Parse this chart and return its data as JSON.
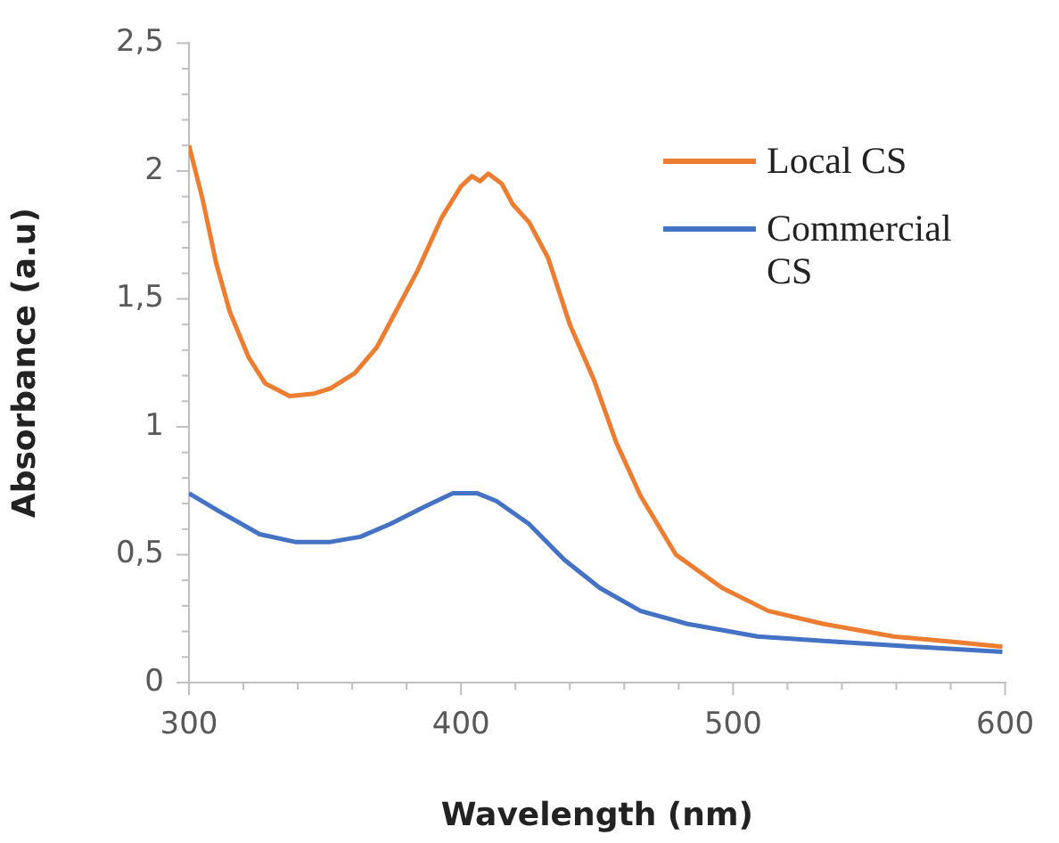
{
  "chart_data": {
    "type": "line",
    "xlabel": "Wavelength (nm)",
    "ylabel": "Absorbance (a.u)",
    "legend": "right",
    "marker": "none",
    "xlim": [
      300,
      600
    ],
    "ylim": [
      0,
      2.5
    ],
    "xticks": [
      300,
      {
        "value": 320,
        "label": null
      },
      {
        "value": 340,
        "label": null
      },
      {
        "value": 360,
        "label": null
      },
      {
        "value": 380,
        "label": null
      },
      400,
      {
        "value": 420,
        "label": null
      },
      {
        "value": 440,
        "label": null
      },
      {
        "value": 460,
        "label": null
      },
      {
        "value": 480,
        "label": null
      },
      500,
      {
        "value": 520,
        "label": null
      },
      {
        "value": 540,
        "label": null
      },
      {
        "value": 560,
        "label": null
      },
      {
        "value": 580,
        "label": null
      },
      600
    ],
    "yticks": [
      0,
      {
        "value": 0.1,
        "label": null
      },
      {
        "value": 0.2,
        "label": null
      },
      {
        "value": 0.3,
        "label": null
      },
      {
        "value": 0.4,
        "label": null
      },
      {
        "value": 0.5,
        "label": "0,5"
      },
      {
        "value": 0.6,
        "label": null
      },
      {
        "value": 0.7,
        "label": null
      },
      {
        "value": 0.8,
        "label": null
      },
      {
        "value": 0.9,
        "label": null
      },
      1,
      {
        "value": 1.1,
        "label": null
      },
      {
        "value": 1.2,
        "label": null
      },
      {
        "value": 1.3,
        "label": null
      },
      {
        "value": 1.4,
        "label": null
      },
      {
        "value": 1.5,
        "label": "1,5"
      },
      {
        "value": 1.6,
        "label": null
      },
      {
        "value": 1.7,
        "label": null
      },
      {
        "value": 1.8,
        "label": null
      },
      {
        "value": 1.9,
        "label": null
      },
      2,
      {
        "value": 2.1,
        "label": null
      },
      {
        "value": 2.2,
        "label": null
      },
      {
        "value": 2.3,
        "label": null
      },
      {
        "value": 2.4,
        "label": null
      },
      {
        "value": 2.5,
        "label": "2,5"
      }
    ],
    "series": [
      {
        "name": "Local CS",
        "color": "#ed7d31",
        "x": [
          300,
          305,
          310,
          315,
          322,
          328,
          337,
          346,
          352,
          361,
          369,
          376,
          384,
          393,
          400,
          404,
          407,
          410,
          415,
          419,
          425,
          432,
          440,
          449,
          457,
          466,
          479,
          496,
          513,
          533,
          559,
          580,
          599
        ],
        "values": [
          2.1,
          1.89,
          1.64,
          1.45,
          1.27,
          1.17,
          1.12,
          1.13,
          1.15,
          1.21,
          1.31,
          1.45,
          1.61,
          1.82,
          1.94,
          1.98,
          1.96,
          1.99,
          1.95,
          1.87,
          1.8,
          1.66,
          1.4,
          1.18,
          0.94,
          0.73,
          0.5,
          0.37,
          0.28,
          0.23,
          0.18,
          0.16,
          0.14
        ]
      },
      {
        "name": "Commercial CS",
        "color": "#4472c4",
        "x": [
          300,
          311,
          326,
          339,
          352,
          363,
          374,
          387,
          397,
          406,
          413,
          425,
          438,
          451,
          466,
          483,
          509,
          537,
          567,
          599
        ],
        "values": [
          0.74,
          0.67,
          0.58,
          0.55,
          0.55,
          0.57,
          0.62,
          0.69,
          0.74,
          0.74,
          0.71,
          0.62,
          0.48,
          0.37,
          0.28,
          0.23,
          0.18,
          0.16,
          0.14,
          0.12
        ]
      }
    ]
  }
}
